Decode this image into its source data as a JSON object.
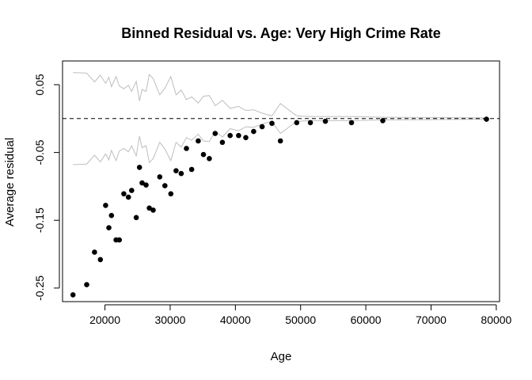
{
  "chart_data": {
    "type": "scatter",
    "title": "Binned Residual vs. Age: Very High Crime Rate",
    "xlabel": "Age",
    "ylabel": "Average residual",
    "xlim": [
      13500,
      80500
    ],
    "ylim": [
      -0.27,
      0.085
    ],
    "x_ticks": [
      20000,
      30000,
      40000,
      50000,
      60000,
      70000,
      80000
    ],
    "y_ticks": [
      0.05,
      -0.05,
      -0.15,
      -0.25
    ],
    "y_tick_labels": [
      "0.05",
      "-0.05",
      "-0.15",
      "-0.25"
    ],
    "x_tick_labels": [
      "20000",
      "30000",
      "40000",
      "50000",
      "60000",
      "70000",
      "80000"
    ],
    "reference_line": {
      "y": 0,
      "style": "dashed",
      "color": "#000000"
    },
    "band_color": "#bebebe",
    "point_color": "#000000",
    "points": {
      "x": [
        15100,
        17200,
        18400,
        19300,
        20100,
        20600,
        21000,
        21700,
        22200,
        22900,
        23600,
        24100,
        24800,
        25300,
        25700,
        26300,
        26800,
        27400,
        28400,
        29200,
        30100,
        30900,
        31700,
        32500,
        33300,
        34300,
        35100,
        36000,
        36900,
        38000,
        39200,
        40500,
        41600,
        42800,
        44100,
        45600,
        46900,
        49400,
        51500,
        53800,
        57800,
        62600,
        78500
      ],
      "y": [
        -0.26,
        -0.245,
        -0.197,
        -0.208,
        -0.128,
        -0.161,
        -0.143,
        -0.179,
        -0.179,
        -0.111,
        -0.116,
        -0.106,
        -0.146,
        -0.072,
        -0.095,
        -0.098,
        -0.132,
        -0.135,
        -0.086,
        -0.099,
        -0.111,
        -0.077,
        -0.081,
        -0.044,
        -0.075,
        -0.033,
        -0.053,
        -0.059,
        -0.022,
        -0.035,
        -0.025,
        -0.025,
        -0.028,
        -0.019,
        -0.012,
        -0.007,
        -0.033,
        -0.006,
        -0.006,
        -0.004,
        -0.006,
        -0.003,
        -0.001
      ]
    },
    "band_upper": {
      "x": [
        15100,
        17200,
        18400,
        19300,
        20100,
        20600,
        21000,
        21700,
        22200,
        22900,
        23600,
        24100,
        24800,
        25300,
        25700,
        26300,
        26800,
        27400,
        28400,
        29200,
        30100,
        30900,
        31700,
        32500,
        33300,
        34300,
        35100,
        36000,
        36900,
        38000,
        39200,
        40500,
        41600,
        42800,
        44100,
        45600,
        46900,
        49400,
        51500,
        53800,
        57800,
        62600,
        78500
      ],
      "y": [
        0.068,
        0.067,
        0.054,
        0.064,
        0.052,
        0.061,
        0.047,
        0.062,
        0.048,
        0.044,
        0.049,
        0.04,
        0.055,
        0.026,
        0.043,
        0.04,
        0.065,
        0.059,
        0.035,
        0.045,
        0.062,
        0.035,
        0.042,
        0.028,
        0.032,
        0.023,
        0.033,
        0.034,
        0.019,
        0.027,
        0.015,
        0.018,
        0.012,
        0.013,
        0.008,
        0.004,
        0.022,
        0.004,
        0.003,
        0.003,
        0.003,
        0.002,
        0.001
      ]
    },
    "band_lower": {
      "x": [
        15100,
        17200,
        18400,
        19300,
        20100,
        20600,
        21000,
        21700,
        22200,
        22900,
        23600,
        24100,
        24800,
        25300,
        25700,
        26300,
        26800,
        27400,
        28400,
        29200,
        30100,
        30900,
        31700,
        32500,
        33300,
        34300,
        35100,
        36000,
        36900,
        38000,
        39200,
        40500,
        41600,
        42800,
        44100,
        45600,
        46900,
        49400,
        51500,
        53800,
        57800,
        62600,
        78500
      ],
      "y": [
        -0.068,
        -0.067,
        -0.054,
        -0.064,
        -0.052,
        -0.061,
        -0.047,
        -0.062,
        -0.048,
        -0.044,
        -0.049,
        -0.04,
        -0.055,
        -0.026,
        -0.043,
        -0.04,
        -0.065,
        -0.059,
        -0.035,
        -0.045,
        -0.062,
        -0.035,
        -0.042,
        -0.028,
        -0.032,
        -0.023,
        -0.033,
        -0.034,
        -0.019,
        -0.027,
        -0.015,
        -0.018,
        -0.012,
        -0.013,
        -0.008,
        -0.004,
        -0.022,
        -0.004,
        -0.003,
        -0.003,
        -0.003,
        -0.002,
        -0.001
      ]
    }
  }
}
